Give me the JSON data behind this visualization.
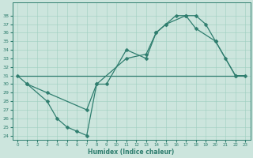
{
  "line1_x": [
    0,
    1,
    3,
    4,
    5,
    6,
    7,
    8,
    9,
    11,
    13,
    14,
    15,
    16,
    17,
    18,
    19,
    20,
    21,
    22,
    23
  ],
  "line1_y": [
    31,
    30,
    28,
    26,
    25,
    24.5,
    24,
    30,
    30,
    34,
    33,
    36,
    37,
    38,
    38,
    38,
    37,
    35,
    33,
    31,
    31
  ],
  "line2_x": [
    0,
    23
  ],
  "line2_y": [
    31,
    31
  ],
  "line3_x": [
    1,
    3,
    7,
    8,
    11,
    13,
    14,
    15,
    17,
    18,
    20,
    22
  ],
  "line3_y": [
    30,
    29,
    27,
    30,
    33,
    33.5,
    36,
    37,
    38,
    36.5,
    35,
    31
  ],
  "color": "#2e7d6e",
  "bg_color": "#cce5dd",
  "grid_color": "#9ecfc0",
  "xlabel": "Humidex (Indice chaleur)",
  "ylim": [
    23.5,
    39.5
  ],
  "xlim": [
    -0.5,
    23.5
  ],
  "yticks": [
    24,
    25,
    26,
    27,
    28,
    29,
    30,
    31,
    32,
    33,
    34,
    35,
    36,
    37,
    38
  ],
  "xticks": [
    0,
    1,
    2,
    3,
    4,
    5,
    6,
    7,
    8,
    9,
    10,
    11,
    12,
    13,
    14,
    15,
    16,
    17,
    18,
    19,
    20,
    21,
    22,
    23
  ]
}
